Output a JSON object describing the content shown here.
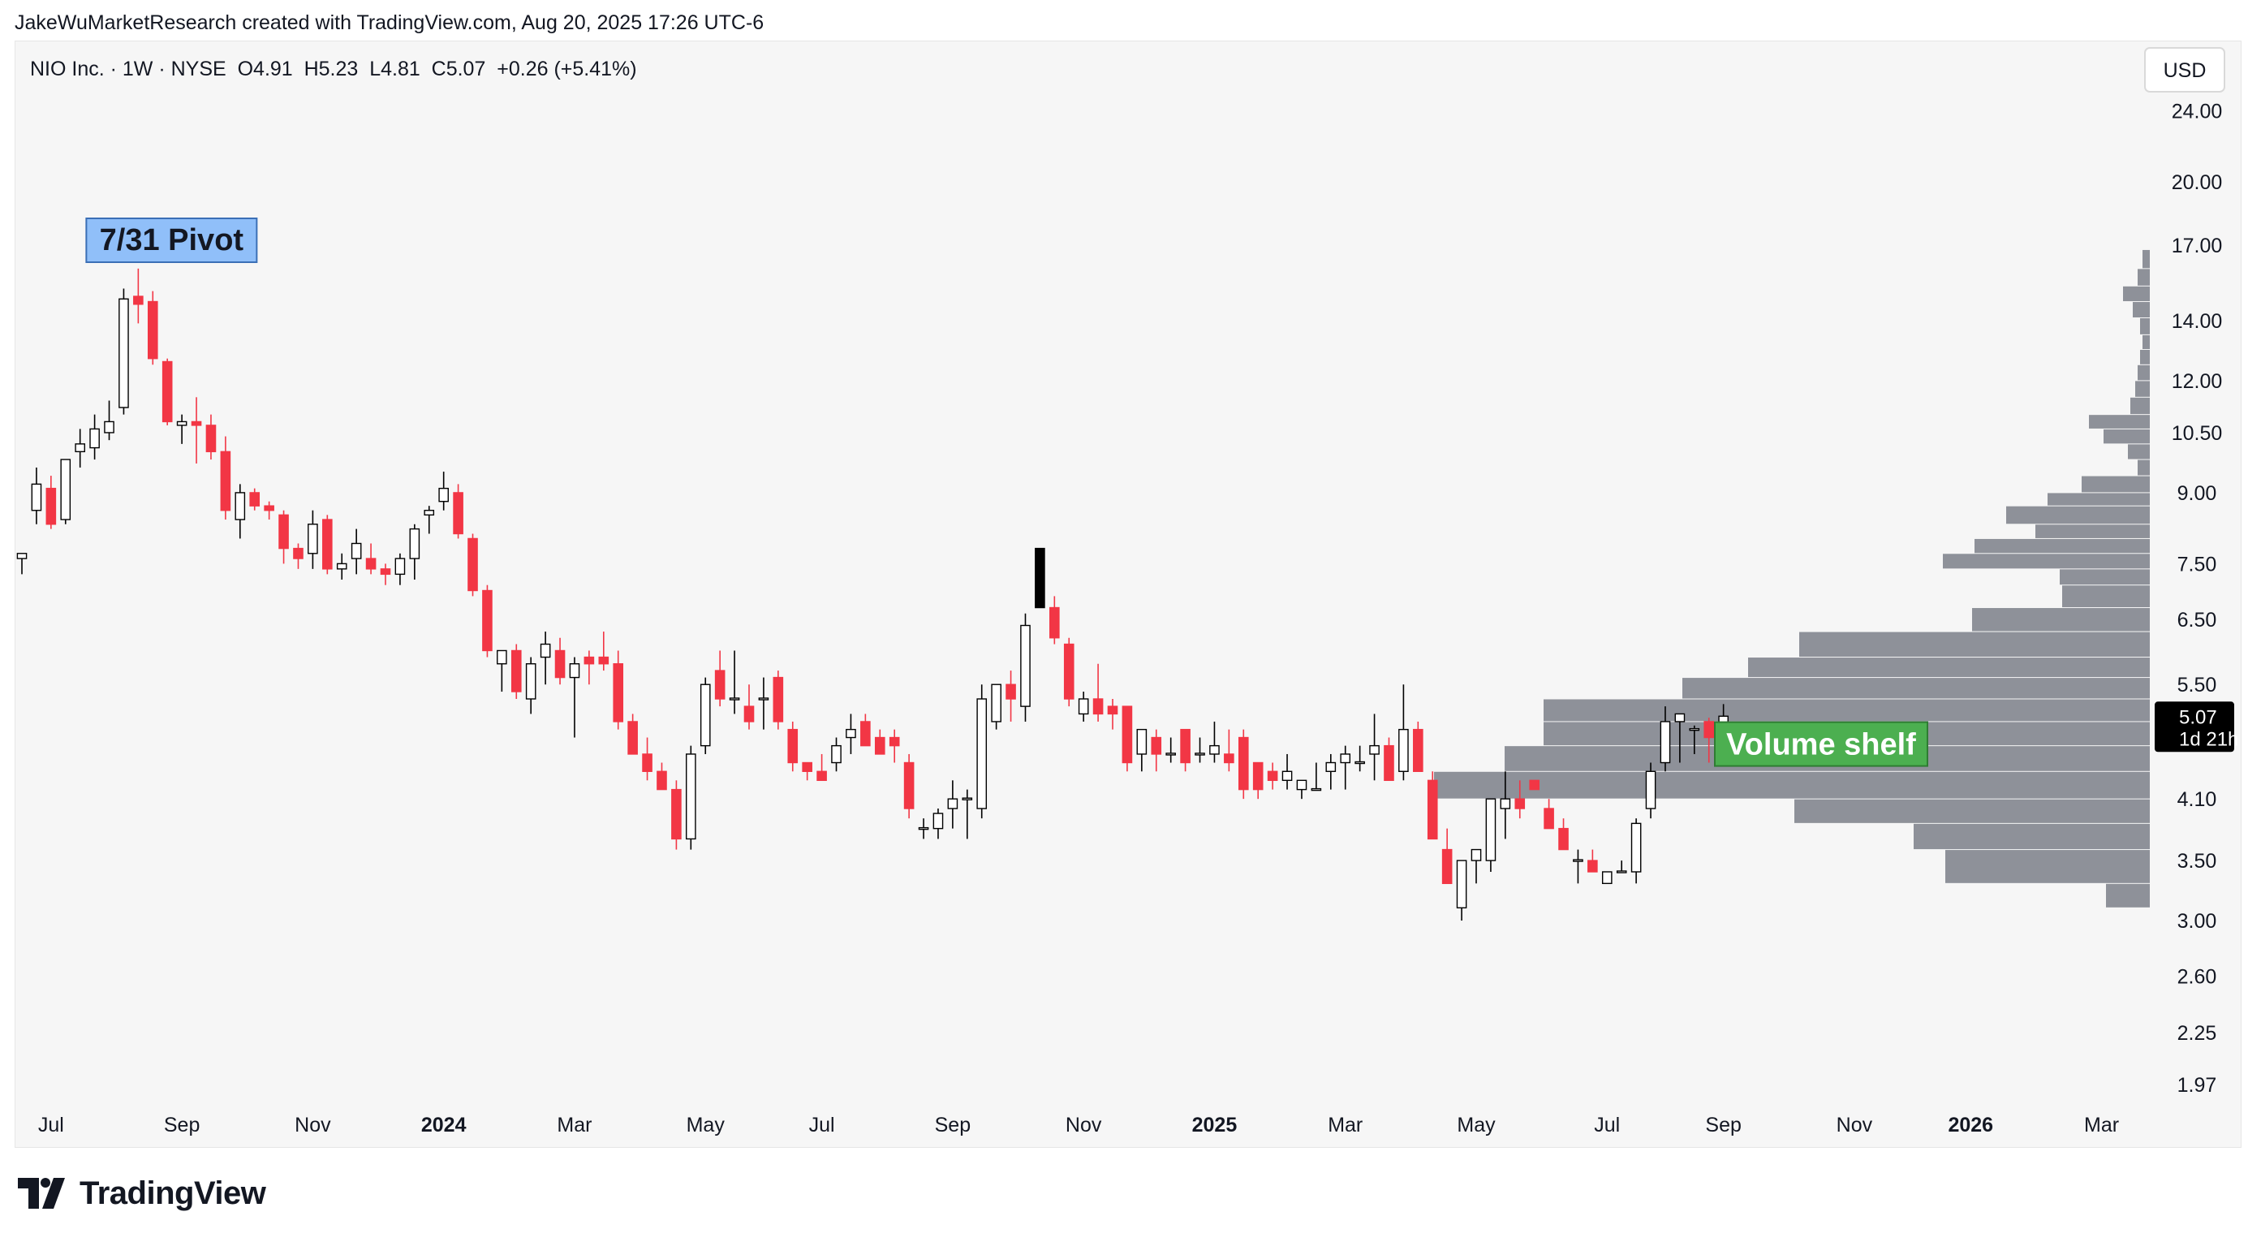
{
  "header": {
    "credit": "JakeWuMarketResearch created with TradingView.com, Aug 20, 2025 17:26 UTC-6"
  },
  "chart_data": {
    "type": "candlestick",
    "title": "NIO Inc. · 1W · NYSE  O4.91  H5.23  L4.81  C5.07  +0.26 (+5.41%)",
    "symbol": "NIO Inc.",
    "interval": "1W",
    "exchange": "NYSE",
    "ohlc_readout": {
      "open": "O4.91",
      "high": "H5.23",
      "low": "L4.81",
      "close": "C5.07",
      "change": "+0.26 (+5.41%)"
    },
    "currency": "USD",
    "y_scale": "log",
    "ylim": [
      1.85,
      27.5
    ],
    "y_ticks": [
      24.0,
      20.0,
      17.0,
      14.0,
      12.0,
      10.5,
      9.0,
      7.5,
      6.5,
      5.5,
      4.1,
      3.5,
      3.0,
      2.6,
      2.25,
      1.97
    ],
    "y_tick_labels": [
      "24.00",
      "20.00",
      "17.00",
      "14.00",
      "12.00",
      "10.50",
      "9.00",
      "7.50",
      "6.50",
      "5.50",
      "4.10",
      "3.50",
      "3.00",
      "2.60",
      "2.25",
      "1.97"
    ],
    "x_ticks": [
      {
        "label": "Jul",
        "bar": 2,
        "bold": false
      },
      {
        "label": "Sep",
        "bar": 11,
        "bold": false
      },
      {
        "label": "Nov",
        "bar": 20,
        "bold": false
      },
      {
        "label": "2024",
        "bar": 29,
        "bold": true
      },
      {
        "label": "Mar",
        "bar": 38,
        "bold": false
      },
      {
        "label": "May",
        "bar": 47,
        "bold": false
      },
      {
        "label": "Jul",
        "bar": 55,
        "bold": false
      },
      {
        "label": "Sep",
        "bar": 64,
        "bold": false
      },
      {
        "label": "Nov",
        "bar": 73,
        "bold": false
      },
      {
        "label": "2025",
        "bar": 82,
        "bold": true
      },
      {
        "label": "Mar",
        "bar": 91,
        "bold": false
      },
      {
        "label": "May",
        "bar": 100,
        "bold": false
      },
      {
        "label": "Jul",
        "bar": 109,
        "bold": false
      },
      {
        "label": "Sep",
        "bar": 117,
        "bold": false
      },
      {
        "label": "Nov",
        "bar": 126,
        "bold": false
      },
      {
        "label": "2026",
        "bar": 134,
        "bold": true
      },
      {
        "label": "Mar",
        "bar": 143,
        "bold": false
      }
    ],
    "candles": [
      [
        7.6,
        7.7,
        7.3,
        7.7
      ],
      [
        8.6,
        9.6,
        8.3,
        9.2
      ],
      [
        9.1,
        9.4,
        8.2,
        8.3
      ],
      [
        8.4,
        9.8,
        8.3,
        9.8
      ],
      [
        10.0,
        10.6,
        9.6,
        10.2
      ],
      [
        10.1,
        11.0,
        9.8,
        10.6
      ],
      [
        10.5,
        11.4,
        10.3,
        10.8
      ],
      [
        11.2,
        15.2,
        11.0,
        14.8
      ],
      [
        14.9,
        16.0,
        13.9,
        14.6
      ],
      [
        14.7,
        15.1,
        12.5,
        12.7
      ],
      [
        12.6,
        12.7,
        10.7,
        10.8
      ],
      [
        10.7,
        11.0,
        10.2,
        10.8
      ],
      [
        10.8,
        11.5,
        9.7,
        10.7
      ],
      [
        10.7,
        11.0,
        9.8,
        10.0
      ],
      [
        10.0,
        10.4,
        8.4,
        8.6
      ],
      [
        8.4,
        9.2,
        8.0,
        9.0
      ],
      [
        9.0,
        9.1,
        8.6,
        8.7
      ],
      [
        8.7,
        8.8,
        8.4,
        8.6
      ],
      [
        8.5,
        8.6,
        7.5,
        7.8
      ],
      [
        7.8,
        7.9,
        7.4,
        7.6
      ],
      [
        7.7,
        8.6,
        7.4,
        8.3
      ],
      [
        8.4,
        8.5,
        7.3,
        7.4
      ],
      [
        7.4,
        7.7,
        7.2,
        7.5
      ],
      [
        7.6,
        8.2,
        7.3,
        7.9
      ],
      [
        7.6,
        7.9,
        7.3,
        7.4
      ],
      [
        7.4,
        7.5,
        7.1,
        7.3
      ],
      [
        7.3,
        7.7,
        7.1,
        7.6
      ],
      [
        7.6,
        8.3,
        7.2,
        8.2
      ],
      [
        8.5,
        8.7,
        8.1,
        8.6
      ],
      [
        8.8,
        9.5,
        8.6,
        9.1
      ],
      [
        9.0,
        9.2,
        8.0,
        8.1
      ],
      [
        8.0,
        8.1,
        6.9,
        7.0
      ],
      [
        7.0,
        7.1,
        5.9,
        6.0
      ],
      [
        5.8,
        6.0,
        5.4,
        6.0
      ],
      [
        6.0,
        6.1,
        5.3,
        5.4
      ],
      [
        5.3,
        5.9,
        5.1,
        5.8
      ],
      [
        5.9,
        6.3,
        5.5,
        6.1
      ],
      [
        6.0,
        6.2,
        5.5,
        5.6
      ],
      [
        5.6,
        5.9,
        4.8,
        5.8
      ],
      [
        5.9,
        6.0,
        5.5,
        5.8
      ],
      [
        5.9,
        6.3,
        5.7,
        5.8
      ],
      [
        5.8,
        6.0,
        4.9,
        5.0
      ],
      [
        5.0,
        5.1,
        4.6,
        4.6
      ],
      [
        4.6,
        4.8,
        4.3,
        4.4
      ],
      [
        4.4,
        4.5,
        4.2,
        4.2
      ],
      [
        4.2,
        4.3,
        3.6,
        3.7
      ],
      [
        3.7,
        4.7,
        3.6,
        4.6
      ],
      [
        4.7,
        5.6,
        4.6,
        5.5
      ],
      [
        5.7,
        6.0,
        5.2,
        5.3
      ],
      [
        5.3,
        6.0,
        5.1,
        5.3
      ],
      [
        5.2,
        5.5,
        4.9,
        5.0
      ],
      [
        5.3,
        5.6,
        4.9,
        5.3
      ],
      [
        5.6,
        5.7,
        4.9,
        5.0
      ],
      [
        4.9,
        5.0,
        4.4,
        4.5
      ],
      [
        4.5,
        4.5,
        4.3,
        4.4
      ],
      [
        4.4,
        4.6,
        4.3,
        4.3
      ],
      [
        4.5,
        4.8,
        4.4,
        4.7
      ],
      [
        4.8,
        5.1,
        4.6,
        4.9
      ],
      [
        5.0,
        5.1,
        4.7,
        4.7
      ],
      [
        4.8,
        4.9,
        4.6,
        4.6
      ],
      [
        4.8,
        4.9,
        4.5,
        4.7
      ],
      [
        4.5,
        4.6,
        3.9,
        4.0
      ],
      [
        3.8,
        3.9,
        3.7,
        3.8
      ],
      [
        3.8,
        4.0,
        3.7,
        3.95
      ],
      [
        4.0,
        4.3,
        3.8,
        4.1
      ],
      [
        4.1,
        4.2,
        3.7,
        4.1
      ],
      [
        4.0,
        5.5,
        3.9,
        5.3
      ],
      [
        5.0,
        5.5,
        4.9,
        5.5
      ],
      [
        5.5,
        5.7,
        5.0,
        5.3
      ],
      [
        5.2,
        6.6,
        5.0,
        6.4
      ],
      [
        7.8,
        7.8,
        6.7,
        6.7
      ],
      [
        6.7,
        6.9,
        6.1,
        6.2
      ],
      [
        6.1,
        6.2,
        5.2,
        5.3
      ],
      [
        5.1,
        5.4,
        5.0,
        5.3
      ],
      [
        5.3,
        5.8,
        5.0,
        5.1
      ],
      [
        5.2,
        5.3,
        4.9,
        5.1
      ],
      [
        5.2,
        5.2,
        4.4,
        4.5
      ],
      [
        4.6,
        4.9,
        4.4,
        4.9
      ],
      [
        4.8,
        4.9,
        4.4,
        4.6
      ],
      [
        4.6,
        4.8,
        4.5,
        4.6
      ],
      [
        4.9,
        4.9,
        4.4,
        4.5
      ],
      [
        4.6,
        4.8,
        4.5,
        4.6
      ],
      [
        4.6,
        5.0,
        4.5,
        4.7
      ],
      [
        4.6,
        4.9,
        4.4,
        4.5
      ],
      [
        4.8,
        4.9,
        4.1,
        4.2
      ],
      [
        4.5,
        4.5,
        4.1,
        4.2
      ],
      [
        4.4,
        4.5,
        4.2,
        4.3
      ],
      [
        4.3,
        4.6,
        4.2,
        4.4
      ],
      [
        4.2,
        4.3,
        4.1,
        4.3
      ],
      [
        4.2,
        4.5,
        4.2,
        4.2
      ],
      [
        4.4,
        4.6,
        4.2,
        4.5
      ],
      [
        4.5,
        4.7,
        4.2,
        4.6
      ],
      [
        4.5,
        4.7,
        4.4,
        4.5
      ],
      [
        4.6,
        5.1,
        4.3,
        4.7
      ],
      [
        4.7,
        4.8,
        4.3,
        4.3
      ],
      [
        4.4,
        5.5,
        4.3,
        4.9
      ],
      [
        4.9,
        5.0,
        4.4,
        4.4
      ],
      [
        4.3,
        4.4,
        3.7,
        3.7
      ],
      [
        3.6,
        3.8,
        3.3,
        3.3
      ],
      [
        3.1,
        3.5,
        3.0,
        3.5
      ],
      [
        3.5,
        3.6,
        3.3,
        3.6
      ],
      [
        3.5,
        4.0,
        3.4,
        4.1
      ],
      [
        4.0,
        4.4,
        3.7,
        4.1
      ],
      [
        4.1,
        4.3,
        3.9,
        4.0
      ],
      [
        4.3,
        4.3,
        4.2,
        4.2
      ],
      [
        4.0,
        4.1,
        3.8,
        3.8
      ],
      [
        3.8,
        3.9,
        3.6,
        3.6
      ],
      [
        3.5,
        3.6,
        3.3,
        3.5
      ],
      [
        3.5,
        3.6,
        3.4,
        3.4
      ],
      [
        3.3,
        3.4,
        3.3,
        3.4
      ],
      [
        3.4,
        3.5,
        3.4,
        3.4
      ],
      [
        3.4,
        3.9,
        3.3,
        3.85
      ],
      [
        4.0,
        4.5,
        3.9,
        4.4
      ],
      [
        4.5,
        5.2,
        4.4,
        5.0
      ],
      [
        5.0,
        5.1,
        4.5,
        5.1
      ],
      [
        4.9,
        4.95,
        4.6,
        4.9
      ],
      [
        5.0,
        5.05,
        4.5,
        4.8
      ],
      [
        4.91,
        5.23,
        4.81,
        5.07
      ]
    ],
    "volume_profile": [
      {
        "price_low": 16.0,
        "price_high": 16.8,
        "relative_volume": 0.03
      },
      {
        "price_low": 15.3,
        "price_high": 16.0,
        "relative_volume": 0.05
      },
      {
        "price_low": 14.7,
        "price_high": 15.3,
        "relative_volume": 0.11
      },
      {
        "price_low": 14.1,
        "price_high": 14.7,
        "relative_volume": 0.07
      },
      {
        "price_low": 13.5,
        "price_high": 14.1,
        "relative_volume": 0.04
      },
      {
        "price_low": 13.0,
        "price_high": 13.5,
        "relative_volume": 0.03
      },
      {
        "price_low": 12.5,
        "price_high": 13.0,
        "relative_volume": 0.04
      },
      {
        "price_low": 12.0,
        "price_high": 12.5,
        "relative_volume": 0.05
      },
      {
        "price_low": 11.5,
        "price_high": 12.0,
        "relative_volume": 0.06
      },
      {
        "price_low": 11.0,
        "price_high": 11.5,
        "relative_volume": 0.08
      },
      {
        "price_low": 10.6,
        "price_high": 11.0,
        "relative_volume": 0.25
      },
      {
        "price_low": 10.2,
        "price_high": 10.6,
        "relative_volume": 0.19
      },
      {
        "price_low": 9.8,
        "price_high": 10.2,
        "relative_volume": 0.09
      },
      {
        "price_low": 9.4,
        "price_high": 9.8,
        "relative_volume": 0.05
      },
      {
        "price_low": 9.0,
        "price_high": 9.4,
        "relative_volume": 0.28
      },
      {
        "price_low": 8.7,
        "price_high": 9.0,
        "relative_volume": 0.42
      },
      {
        "price_low": 8.3,
        "price_high": 8.7,
        "relative_volume": 0.59
      },
      {
        "price_low": 8.0,
        "price_high": 8.3,
        "relative_volume": 0.47
      },
      {
        "price_low": 7.7,
        "price_high": 8.0,
        "relative_volume": 0.72
      },
      {
        "price_low": 7.4,
        "price_high": 7.7,
        "relative_volume": 0.85
      },
      {
        "price_low": 7.1,
        "price_high": 7.4,
        "relative_volume": 0.37
      },
      {
        "price_low": 6.7,
        "price_high": 7.1,
        "relative_volume": 0.36
      },
      {
        "price_low": 6.3,
        "price_high": 6.7,
        "relative_volume": 0.73
      },
      {
        "price_low": 5.9,
        "price_high": 6.3,
        "relative_volume": 1.44
      },
      {
        "price_low": 5.6,
        "price_high": 5.9,
        "relative_volume": 1.65
      },
      {
        "price_low": 5.3,
        "price_high": 5.6,
        "relative_volume": 1.92
      },
      {
        "price_low": 5.0,
        "price_high": 5.3,
        "relative_volume": 2.49
      },
      {
        "price_low": 4.7,
        "price_high": 5.0,
        "relative_volume": 2.49
      },
      {
        "price_low": 4.4,
        "price_high": 4.7,
        "relative_volume": 2.65
      },
      {
        "price_low": 4.1,
        "price_high": 4.4,
        "relative_volume": 2.94
      },
      {
        "price_low": 3.85,
        "price_high": 4.1,
        "relative_volume": 1.46
      },
      {
        "price_low": 3.6,
        "price_high": 3.85,
        "relative_volume": 0.97
      },
      {
        "price_low": 3.3,
        "price_high": 3.6,
        "relative_volume": 0.84
      },
      {
        "price_low": 3.1,
        "price_high": 3.3,
        "relative_volume": 0.18
      }
    ],
    "annotations": [
      {
        "text": "7/31 Pivot",
        "bar": 8,
        "price": 16.5
      },
      {
        "text": "Volume shelf",
        "bar": 117,
        "price": 4.72
      }
    ],
    "last_price": {
      "value": "5.07",
      "countdown": "1d 21h"
    },
    "colors": {
      "up_body": "#ffffff",
      "up_outline": "#000000",
      "down": "#f23645",
      "highlight": "#000000",
      "volume_profile": "#8e9199",
      "pivot_label_bg": "#90bff9",
      "shelf_label_bg": "#4caf50",
      "background": "#f6f6f6"
    }
  },
  "footer": {
    "brand": "TradingView"
  }
}
